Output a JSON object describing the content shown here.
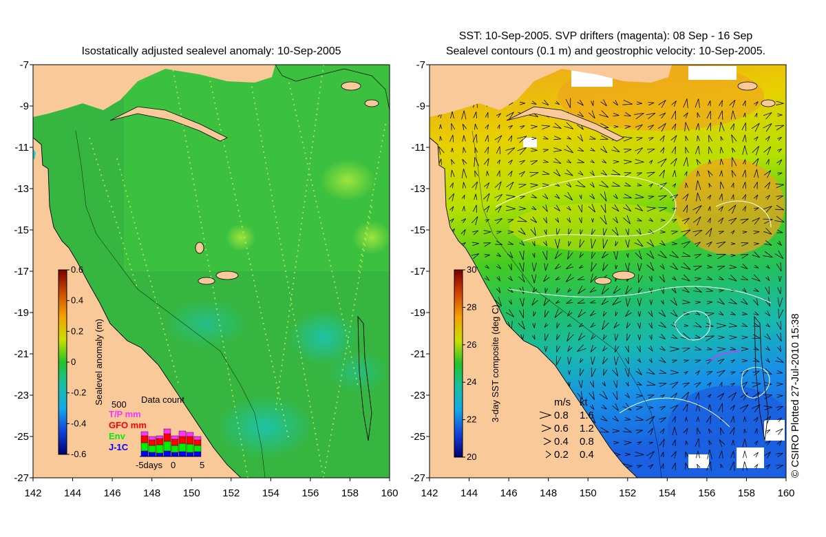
{
  "left_panel": {
    "title": "Isostatically adjusted sealevel anomaly: 10-Sep-2005",
    "colorbar": {
      "label": "Sealevel anomaly (m)",
      "ticks": [
        "0.6",
        "0.4",
        "0.2",
        "0",
        "-0.2",
        "-0.4",
        "-0.6"
      ]
    },
    "data_count": {
      "title": "Data count",
      "max_label": "500",
      "legend": [
        {
          "label": "T/P mm",
          "color": "#ff33ff"
        },
        {
          "label": "GFO mm",
          "color": "#ff0000"
        },
        {
          "label": "Env",
          "color": "#00ee00"
        },
        {
          "label": "J-1C",
          "color": "#0000ff"
        }
      ],
      "x_left": "-5days",
      "x_mid": "0",
      "x_right": "5"
    }
  },
  "right_panel": {
    "title_line1": "SST: 10-Sep-2005. SVP drifters (magenta): 08 Sep - 16 Sep",
    "title_line2": "Sealevel contours (0.1 m) and geostrophic velocity: 10-Sep-2005.",
    "colorbar": {
      "label": "3-day SST composite (deg C)",
      "ticks": [
        "30",
        "28",
        "26",
        "24",
        "22",
        "20"
      ]
    },
    "speed_legend": {
      "header_ms": "m/s",
      "header_kt": "kt",
      "rows": [
        {
          "ms": "0.8",
          "kt": "1.6"
        },
        {
          "ms": "0.6",
          "kt": "1.2"
        },
        {
          "ms": "0.4",
          "kt": "0.8"
        },
        {
          "ms": "0.2",
          "kt": "0.4"
        }
      ]
    }
  },
  "axes": {
    "y_ticks": [
      "-7",
      "-9",
      "-11",
      "-13",
      "-15",
      "-17",
      "-19",
      "-21",
      "-23",
      "-25",
      "-27"
    ],
    "x_ticks": [
      "142",
      "144",
      "146",
      "148",
      "150",
      "152",
      "154",
      "156",
      "158",
      "160"
    ]
  },
  "credit": "© CSIRO Plotted 27-Jul-2010 15:38",
  "colors": {
    "land": "#f9c99a",
    "sea_green": "#3fbf3f",
    "sst_warm": "#f0a020",
    "sst_cold": "#1e6fe0"
  }
}
